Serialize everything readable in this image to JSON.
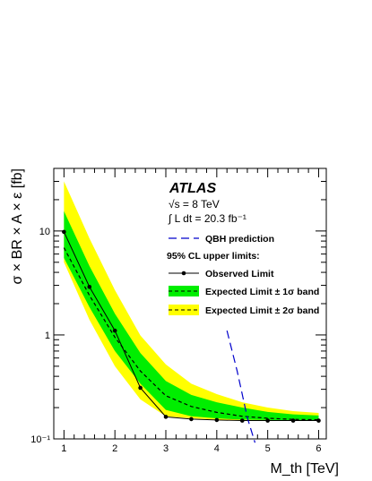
{
  "chart_data": {
    "type": "line",
    "xlabel": "M_th [TeV]",
    "ylabel": "σ × BR × A × ε  [fb]",
    "xlim": [
      0.8,
      6.15
    ],
    "ylim": [
      0.1,
      40
    ],
    "y_scale": "log",
    "x_ticks": [
      1,
      2,
      3,
      4,
      5,
      6
    ],
    "x_tick_labels": [
      "1",
      "2",
      "3",
      "4",
      "5",
      "6"
    ],
    "y_ticks": [
      0.1,
      1,
      10
    ],
    "y_tick_labels": [
      "10⁻¹",
      "1",
      "10"
    ],
    "experiment": "ATLAS",
    "energy_label": "√s = 8 TeV",
    "lumi_label": "∫ L dt = 20.3 fb⁻¹",
    "legend_heading": "95% CL upper limits:",
    "legend_placement": "top-right",
    "colors": {
      "band_1sigma": "#00ee00",
      "band_2sigma": "#ffff00",
      "qbh": "#0000cc",
      "observed": "#000000"
    },
    "observed": {
      "name": "Observed Limit",
      "x": [
        1.0,
        1.5,
        2.0,
        2.5,
        3.0,
        3.5,
        4.0,
        4.5,
        5.0,
        5.5,
        6.0
      ],
      "y": [
        9.8,
        2.9,
        1.1,
        0.31,
        0.163,
        0.155,
        0.152,
        0.15,
        0.15,
        0.15,
        0.15
      ]
    },
    "expected": {
      "name": "Expected Limit",
      "x": [
        1.0,
        1.5,
        2.0,
        2.5,
        3.0,
        3.5,
        4.0,
        4.5,
        5.0,
        5.5,
        6.0
      ],
      "y": [
        6.9,
        2.4,
        0.95,
        0.45,
        0.26,
        0.205,
        0.18,
        0.165,
        0.158,
        0.154,
        0.153
      ]
    },
    "band_1sigma": {
      "name": "Expected Limit ± 1σ band",
      "lower": [
        5.5,
        1.85,
        0.7,
        0.34,
        0.19,
        0.165,
        0.158,
        0.153,
        0.152,
        0.151,
        0.151
      ],
      "upper": [
        15.5,
        4.6,
        1.6,
        0.67,
        0.36,
        0.265,
        0.225,
        0.2,
        0.182,
        0.172,
        0.168
      ]
    },
    "band_2sigma": {
      "name": "Expected Limit ± 2σ band",
      "lower": [
        5.0,
        1.4,
        0.5,
        0.24,
        0.165,
        0.158,
        0.153,
        0.15,
        0.15,
        0.15,
        0.15
      ],
      "upper": [
        30.0,
        8.5,
        2.7,
        0.99,
        0.52,
        0.34,
        0.27,
        0.225,
        0.2,
        0.185,
        0.178
      ]
    },
    "qbh": {
      "name": "QBH prediction",
      "x": [
        4.2,
        4.4,
        4.6,
        4.75
      ],
      "y": [
        1.1,
        0.45,
        0.16,
        0.092
      ]
    }
  }
}
